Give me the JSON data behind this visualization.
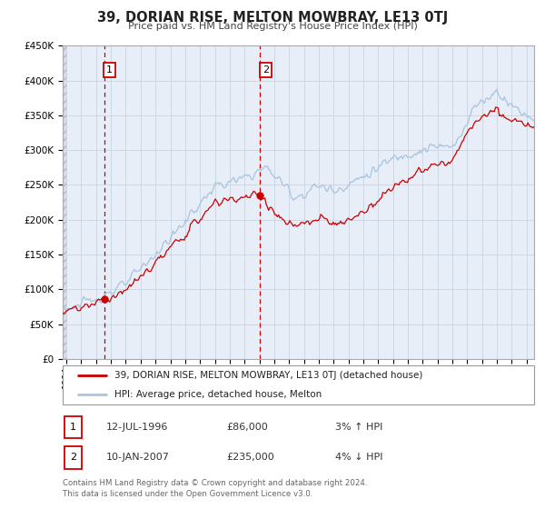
{
  "title": "39, DORIAN RISE, MELTON MOWBRAY, LE13 0TJ",
  "subtitle": "Price paid vs. HM Land Registry's House Price Index (HPI)",
  "ylim": [
    0,
    450000
  ],
  "xlim_start": 1993.75,
  "xlim_end": 2025.5,
  "yticks": [
    0,
    50000,
    100000,
    150000,
    200000,
    250000,
    300000,
    350000,
    400000,
    450000
  ],
  "ytick_labels": [
    "£0",
    "£50K",
    "£100K",
    "£150K",
    "£200K",
    "£250K",
    "£300K",
    "£350K",
    "£400K",
    "£450K"
  ],
  "xticks": [
    1994,
    1995,
    1996,
    1997,
    1998,
    1999,
    2000,
    2001,
    2002,
    2003,
    2004,
    2005,
    2006,
    2007,
    2008,
    2009,
    2010,
    2011,
    2012,
    2013,
    2014,
    2015,
    2016,
    2017,
    2018,
    2019,
    2020,
    2021,
    2022,
    2023,
    2024,
    2025
  ],
  "sale1_x": 1996.54,
  "sale1_y": 86000,
  "sale2_x": 2007.04,
  "sale2_y": 235000,
  "vline1_x": 1996.54,
  "vline2_x": 2007.04,
  "marker_color": "#cc0000",
  "marker_size": 6,
  "hpi_color": "#a8c4de",
  "price_color": "#cc0000",
  "grid_color": "#c8d4e4",
  "plot_bg_color": "#e8eef8",
  "hatch_color": "#c8d0dc",
  "legend_label1": "39, DORIAN RISE, MELTON MOWBRAY, LE13 0TJ (detached house)",
  "legend_label2": "HPI: Average price, detached house, Melton",
  "footer1": "Contains HM Land Registry data © Crown copyright and database right 2024.",
  "footer2": "This data is licensed under the Open Government Licence v3.0.",
  "table_row1": [
    "1",
    "12-JUL-1996",
    "£86,000",
    "3% ↑ HPI"
  ],
  "table_row2": [
    "2",
    "10-JAN-2007",
    "£235,000",
    "4% ↓ HPI"
  ]
}
